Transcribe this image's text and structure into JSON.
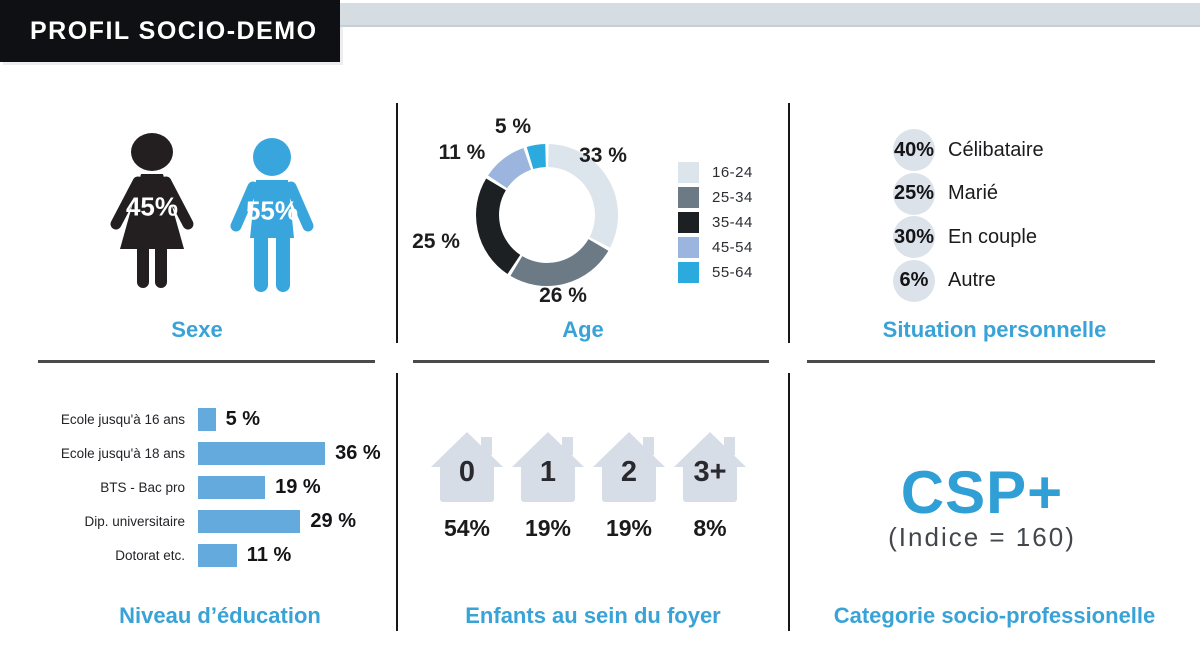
{
  "header": {
    "title": "PROFIL SOCIO-DEMO"
  },
  "colors": {
    "accent_blue": "#39a3d8",
    "icon_blue": "#38a5dc",
    "bar_blue": "#64aadc",
    "icon_black": "#231f20",
    "pictogram_gray": "#d6dde6",
    "donut": [
      "#dde5ec",
      "#6b7a85",
      "#1d2023",
      "#9cb5de",
      "#2baade"
    ]
  },
  "sexe": {
    "title": "Sexe",
    "female_value": 45,
    "male_value": 55
  },
  "age": {
    "title": "Age",
    "labels": [
      "16-24",
      "25-34",
      "35-44",
      "45-54",
      "55-64"
    ],
    "values": [
      33,
      26,
      25,
      11,
      5
    ]
  },
  "situation": {
    "title": "Situation personnelle",
    "items": [
      {
        "value": 40,
        "label": "Célibataire"
      },
      {
        "value": 25,
        "label": "Marié"
      },
      {
        "value": 30,
        "label": "En couple"
      },
      {
        "value": 6,
        "label": "Autre"
      }
    ]
  },
  "education": {
    "title": "Niveau d’éducation",
    "rows": [
      {
        "label": "Ecole jusqu'à 16 ans",
        "value": 5
      },
      {
        "label": "Ecole jusqu'à 18 ans",
        "value": 36
      },
      {
        "label": "BTS - Bac pro",
        "value": 19
      },
      {
        "label": "Dip. universitaire",
        "value": 29
      },
      {
        "label": "Dotorat etc.",
        "value": 11
      }
    ]
  },
  "enfants": {
    "title": "Enfants au sein du foyer",
    "items": [
      {
        "label": "0",
        "value": 54
      },
      {
        "label": "1",
        "value": 19
      },
      {
        "label": "2",
        "value": 19
      },
      {
        "label": "3+",
        "value": 8
      }
    ]
  },
  "csp": {
    "title": "Categorie socio-professionelle",
    "headline": "CSP+",
    "subtext": "(Indice = 160)"
  },
  "chart_data": [
    {
      "type": "pie",
      "title": "Age",
      "labels": [
        "16-24",
        "25-34",
        "35-44",
        "45-54",
        "55-64"
      ],
      "values": [
        33,
        26,
        25,
        11,
        5
      ],
      "colors": [
        "#dde5ec",
        "#6b7a85",
        "#1d2023",
        "#9cb5de",
        "#2baade"
      ],
      "donut": true,
      "start_angle": "top",
      "direction": "clockwise",
      "legend_position": "right",
      "unit": "%"
    },
    {
      "type": "bar",
      "title": "Niveau d’éducation",
      "orientation": "horizontal",
      "categories": [
        "Ecole jusqu'à 16 ans",
        "Ecole jusqu'à 18 ans",
        "BTS - Bac pro",
        "Dip. universitaire",
        "Dotorat etc."
      ],
      "values": [
        5,
        36,
        19,
        29,
        11
      ],
      "unit": "%",
      "bar_color": "#64aadc"
    },
    {
      "type": "table",
      "title": "Sexe",
      "categories": [
        "Femme",
        "Homme"
      ],
      "values": [
        45,
        55
      ],
      "unit": "%"
    },
    {
      "type": "table",
      "title": "Situation personnelle",
      "categories": [
        "Célibataire",
        "Marié",
        "En couple",
        "Autre"
      ],
      "values": [
        40,
        25,
        30,
        6
      ],
      "unit": "%"
    },
    {
      "type": "table",
      "title": "Enfants au sein du foyer",
      "categories": [
        "0",
        "1",
        "2",
        "3+"
      ],
      "values": [
        54,
        19,
        19,
        8
      ],
      "unit": "%"
    },
    {
      "type": "table",
      "title": "Categorie socio-professionelle",
      "categories": [
        "CSP+"
      ],
      "values": [
        160
      ],
      "note": "(Indice = 160)"
    }
  ]
}
